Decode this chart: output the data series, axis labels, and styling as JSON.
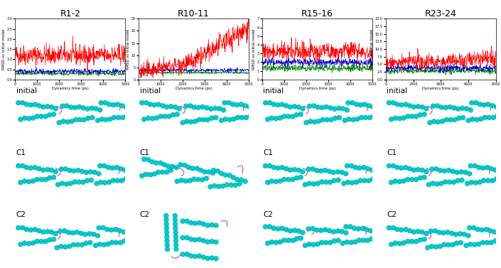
{
  "columns": [
    "R1-2",
    "R10-11",
    "R15-16",
    "R23-24"
  ],
  "row_labels": [
    "initial",
    "C1",
    "C2"
  ],
  "ylabel": "RMSD vs initial model",
  "xlabel": "Dynamics time (ps)",
  "background": "#ffffff",
  "plot_bg": "#ffffff",
  "rmsd_plots": {
    "R1-2": {
      "xmax": 5000,
      "ymax": 3,
      "red_level": 1.2,
      "red_noise": 0.25,
      "red_trend": 0,
      "blue_level": 0.4,
      "blue_noise": 0.06,
      "green_level": 0.28,
      "green_noise": 0.04,
      "xticks": [
        0,
        1000,
        2000,
        3000,
        4000,
        5000
      ]
    },
    "R10-11": {
      "xmax": 5000,
      "ymax": 25,
      "red_start": 3,
      "red_end": 22,
      "red_jump_at": 0.52,
      "blue_level": 3.8,
      "blue_noise": 0.35,
      "green_level": 2.8,
      "green_noise": 0.25,
      "xticks": [
        0,
        1000,
        2000,
        3000,
        4000,
        5000
      ]
    },
    "R15-16": {
      "xmax": 5000,
      "ymax": 7,
      "red_level": 3.2,
      "red_noise": 0.55,
      "red_trend": 0,
      "blue_level": 2.0,
      "blue_noise": 0.22,
      "green_level": 1.3,
      "green_noise": 0.18,
      "xticks": [
        0,
        1000,
        2000,
        3000,
        4000,
        5000
      ]
    },
    "R23-24": {
      "xmax": 8000,
      "ymax": 20,
      "red_level": 5.5,
      "red_noise": 1.3,
      "red_trend": 1.5,
      "blue_level": 3.8,
      "blue_noise": 0.55,
      "green_level": 2.8,
      "green_noise": 0.42,
      "xticks": [
        0,
        2000,
        4000,
        6000,
        8000
      ]
    }
  },
  "line_colors": {
    "red": "#ff0000",
    "blue": "#0000cc",
    "green": "#008800"
  },
  "helix_color": "#00cccc",
  "loop_color": "#cc44cc"
}
